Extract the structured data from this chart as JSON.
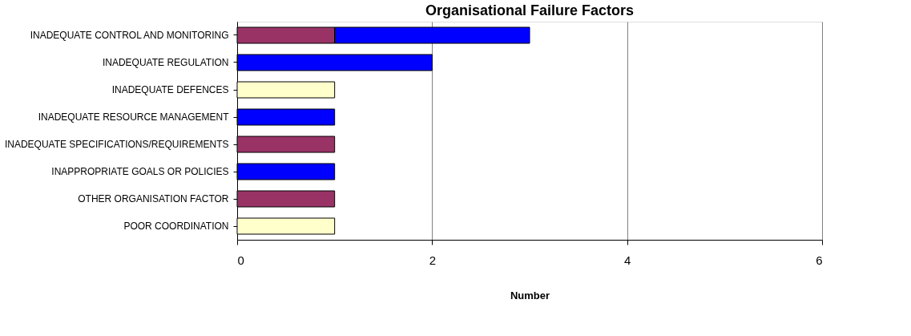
{
  "chart_data": {
    "type": "bar",
    "orientation": "horizontal",
    "stacked": true,
    "title": "Organisational Failure Factors",
    "xlabel": "Number",
    "categories": [
      "INADEQUATE CONTROL AND MONITORING",
      "INADEQUATE REGULATION",
      "INADEQUATE DEFENCES",
      "INADEQUATE RESOURCE MANAGEMENT",
      "INADEQUATE SPECIFICATIONS/REQUIREMENTS",
      "INAPPROPRIATE GOALS OR POLICIES",
      "OTHER ORGANISATION FACTOR",
      "POOR COORDINATION"
    ],
    "series": [
      {
        "color": "#993366",
        "values": [
          1,
          null,
          null,
          null,
          1,
          null,
          1,
          null
        ]
      },
      {
        "color": "#0000ff",
        "values": [
          2,
          2,
          null,
          1,
          null,
          1,
          null,
          null
        ]
      },
      {
        "color": "#ffffcc",
        "values": [
          null,
          null,
          1,
          null,
          null,
          null,
          null,
          1
        ]
      }
    ],
    "xlim": [
      0,
      6
    ],
    "xticks": [
      0,
      2,
      4,
      6
    ],
    "grid": "x",
    "legend": false
  }
}
